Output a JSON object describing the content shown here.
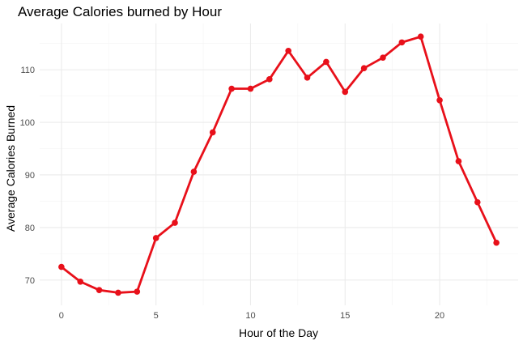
{
  "chart_data": {
    "type": "line",
    "title": "Average Calories burned by Hour",
    "xlabel": "Hour of the Day",
    "ylabel": "Average Calories Burned",
    "xlim": [
      -1.15,
      24.15
    ],
    "ylim": [
      65.2,
      118.8
    ],
    "x_ticks": [
      0,
      5,
      10,
      15,
      20
    ],
    "y_ticks": [
      70,
      80,
      90,
      100,
      110
    ],
    "grid": true,
    "series": [
      {
        "color": "#e8101a",
        "x": [
          0,
          1,
          2,
          3,
          4,
          5,
          6,
          7,
          8,
          9,
          10,
          11,
          12,
          13,
          14,
          15,
          16,
          17,
          18,
          19,
          20,
          21,
          22,
          23
        ],
        "y": [
          72.5,
          69.7,
          68.1,
          67.6,
          67.8,
          78.0,
          80.9,
          90.6,
          98.1,
          106.4,
          106.4,
          108.2,
          113.6,
          108.5,
          111.5,
          105.8,
          110.3,
          112.3,
          115.2,
          116.3,
          104.2,
          92.6,
          84.8,
          77.1
        ]
      }
    ]
  }
}
